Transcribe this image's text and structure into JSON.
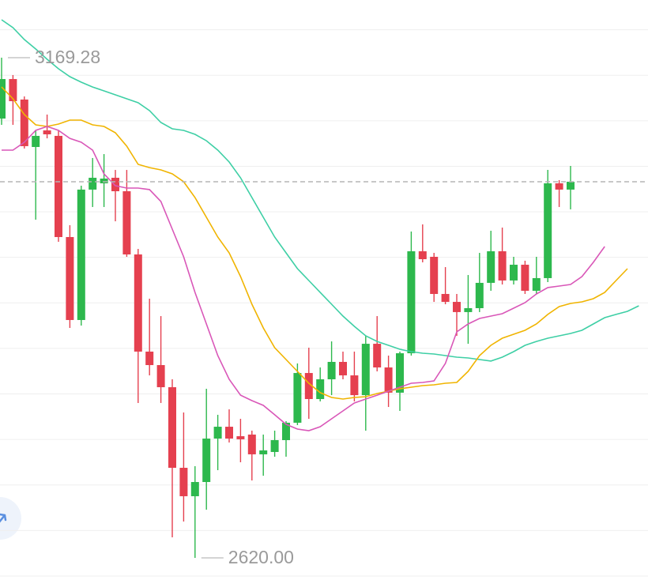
{
  "chart_data": {
    "type": "candlestick",
    "ylim": [
      2595.7,
      3232.6
    ],
    "gridlines": [
      3200,
      3150,
      3100,
      3050,
      3000,
      2950,
      2900,
      2850,
      2800,
      2750,
      2700,
      2650,
      2600
    ],
    "up_color": "#2db84d",
    "down_color": "#e5404f",
    "last_price_line": true,
    "max_label": {
      "value": 3169.28,
      "label": "3169.28"
    },
    "min_label": {
      "value": 2620.0,
      "label": "2620.00"
    },
    "open": [
      3102.4,
      3145.8,
      3123.3,
      3071.2,
      3089.4,
      3083.4,
      2972.3,
      2881.2,
      3024.4,
      3031.3,
      3037.4,
      3022.6,
      2953.2,
      2846.5,
      2831.7,
      2807.4,
      2718.9,
      2687.7,
      2703.3,
      2751.0,
      2764.0,
      2753.6,
      2755.4,
      2733.7,
      2736.3,
      2749.3,
      2768.4,
      2823.0,
      2794.4,
      2816.1,
      2835.2,
      2820.4,
      2798.7,
      2855.1,
      2829.1,
      2801.4,
      2844.7,
      2956.7,
      2950.6,
      2909.8,
      2901.1,
      2889.9,
      2894.2,
      2922.0,
      2956.7,
      2924.6,
      2941.9,
      2913.3,
      2927.2,
      3031.3,
      3024.4,
      null,
      null,
      null,
      null,
      null,
      null
    ],
    "high": [
      3169.28,
      3150.2,
      3126.7,
      3089.4,
      3106.8,
      3089.4,
      2985.3,
      3028.7,
      3059.1,
      3063.4,
      3046.0,
      3046.0,
      2959.3,
      2904.6,
      2885.5,
      2816.1,
      2779.7,
      2720.7,
      2805.7,
      2777.1,
      2783.1,
      2772.7,
      2759.7,
      2755.4,
      2759.7,
      2770.1,
      2833.5,
      2850.8,
      2829.1,
      2857.7,
      2846.5,
      2846.5,
      2863.8,
      2885.5,
      2842.1,
      2846.5,
      2978.4,
      2986.2,
      2954.9,
      2939.3,
      2909.8,
      2930.6,
      2954.9,
      2979.2,
      2982.7,
      2950.6,
      2946.3,
      2950.6,
      3046.0,
      3034.8,
      3050.4,
      null,
      null,
      null,
      null,
      null,
      null
    ],
    "low": [
      3095.5,
      3095.5,
      3069.5,
      2991.4,
      3080.7,
      2967.1,
      2872.5,
      2875.1,
      3005.3,
      3005.3,
      2989.6,
      2950.6,
      2790.1,
      2820.4,
      2790.1,
      2642.6,
      2659.9,
      2620.0,
      2672.9,
      2716.3,
      2746.7,
      2725.0,
      2705.0,
      2710.2,
      2731.1,
      2731.1,
      2765.8,
      2772.7,
      2791.8,
      2798.7,
      2816.1,
      2791.8,
      2759.7,
      2824.8,
      2785.7,
      2781.4,
      2842.1,
      2944.5,
      2901.1,
      2898.5,
      2863.8,
      2855.1,
      2889.9,
      2913.3,
      2920.2,
      2920.2,
      2909.8,
      2909.8,
      2922.8,
      3005.3,
      3002.7,
      null,
      null,
      null,
      null,
      null,
      null
    ],
    "close": [
      3145.8,
      3121.5,
      3072.1,
      3083.4,
      3085.1,
      2972.3,
      2881.2,
      3024.4,
      3037.4,
      3036.5,
      3022.6,
      2953.2,
      2846.5,
      2831.7,
      2807.4,
      2718.9,
      2687.7,
      2703.3,
      2751.0,
      2764.0,
      2751.0,
      2750.2,
      2733.7,
      2738.0,
      2749.3,
      2768.4,
      2823.0,
      2794.4,
      2816.1,
      2835.2,
      2820.4,
      2798.7,
      2855.1,
      2829.1,
      2801.4,
      2844.7,
      2956.7,
      2948.0,
      2909.8,
      2901.1,
      2889.9,
      2894.2,
      2922.0,
      2956.7,
      2924.6,
      2941.9,
      2913.3,
      2927.2,
      3031.3,
      3024.4,
      3033.0,
      null,
      null,
      null,
      null,
      null,
      null
    ],
    "moving_averages": [
      {
        "color": "#3ecfa5",
        "values": [
          3210.9,
          3202.2,
          3189.2,
          3178.8,
          3167.5,
          3157.1,
          3148.4,
          3142.4,
          3137.1,
          3132.8,
          3128.5,
          3124.1,
          3119.8,
          3111.1,
          3098.1,
          3091.2,
          3089.4,
          3085.1,
          3078.1,
          3067.7,
          3054.7,
          3037.4,
          3015.7,
          2994.0,
          2972.3,
          2954.9,
          2937.6,
          2924.6,
          2911.5,
          2898.5,
          2885.5,
          2874.2,
          2863.8,
          2857.7,
          2853.4,
          2849.1,
          2846.5,
          2844.7,
          2843.9,
          2842.1,
          2840.4,
          2839.5,
          2837.8,
          2836.1,
          2840.4,
          2846.5,
          2853.4,
          2857.7,
          2861.2,
          2863.8,
          2866.4,
          2869.9,
          2876.8,
          2883.8,
          2887.3,
          2890.7,
          2896.8
        ]
      },
      {
        "color": "#f0b400",
        "values": [
          3137.1,
          3124.1,
          3106.8,
          3095.5,
          3093.8,
          3096.4,
          3100.7,
          3100.7,
          3095.5,
          3093.8,
          3086.8,
          3072.1,
          3052.1,
          3048.6,
          3046.0,
          3041.7,
          3033.0,
          3015.7,
          2994.0,
          2972.3,
          2954.9,
          2928.9,
          2898.5,
          2872.5,
          2850.8,
          2837.8,
          2824.8,
          2811.8,
          2801.4,
          2796.1,
          2794.4,
          2796.1,
          2797.0,
          2800.5,
          2803.1,
          2805.7,
          2807.4,
          2809.2,
          2810.0,
          2811.8,
          2812.6,
          2824.8,
          2842.1,
          2853.4,
          2861.2,
          2865.6,
          2869.9,
          2876.8,
          2887.3,
          2895.9,
          2899.4,
          2901.1,
          2904.6,
          2911.5,
          2924.6,
          2937.6,
          null
        ]
      },
      {
        "color": "#d957b8",
        "values": [
          3067.7,
          3067.7,
          3076.4,
          3089.4,
          3093.8,
          3089.4,
          3080.7,
          3076.4,
          3067.7,
          3041.7,
          3028.7,
          3026.1,
          3026.1,
          3024.4,
          3011.3,
          2981.0,
          2950.6,
          2911.5,
          2876.8,
          2842.1,
          2816.1,
          2798.7,
          2792.7,
          2787.5,
          2777.1,
          2766.6,
          2761.4,
          2759.7,
          2764.0,
          2772.7,
          2781.4,
          2790.1,
          2794.4,
          2798.7,
          2803.1,
          2807.4,
          2811.8,
          2812.6,
          2814.4,
          2833.5,
          2868.2,
          2876.8,
          2882.9,
          2885.5,
          2888.1,
          2894.2,
          2900.3,
          2909.8,
          2916.8,
          2918.5,
          2920.2,
          2928.9,
          2944.5,
          2961.9,
          null,
          null,
          null
        ]
      }
    ]
  }
}
